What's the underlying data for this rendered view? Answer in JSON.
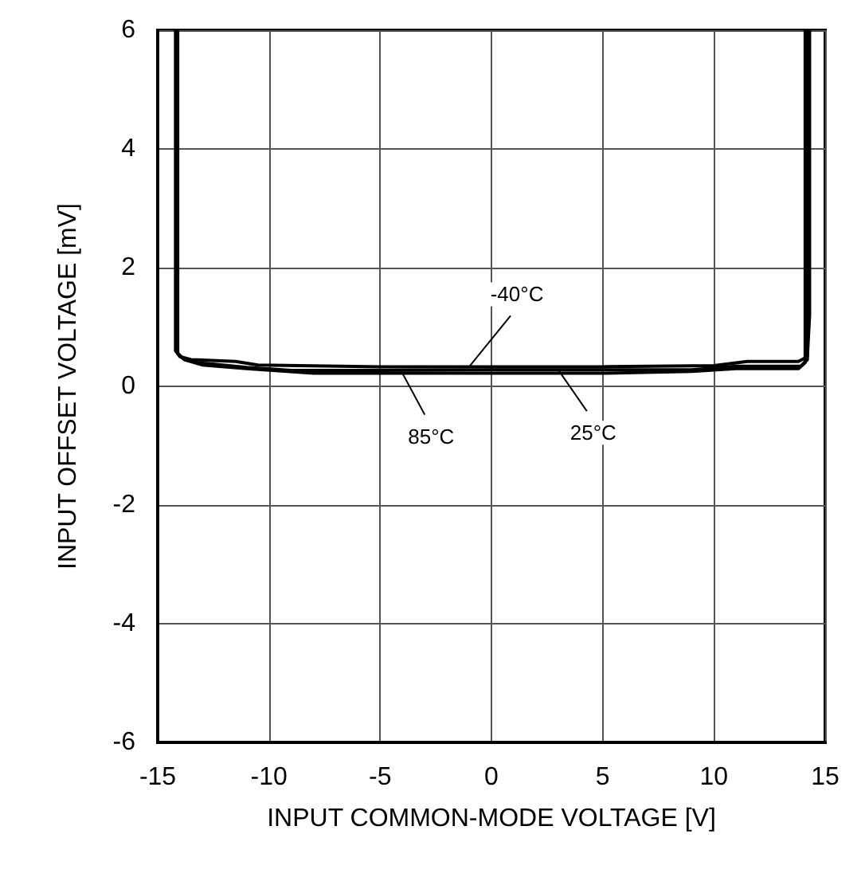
{
  "chart_data": {
    "type": "line",
    "xlabel": "INPUT COMMON-MODE VOLTAGE [V]",
    "ylabel": "INPUT OFFSET VOLTAGE [mV]",
    "xlim": [
      -15,
      15
    ],
    "xticks": [
      -15,
      -10,
      -5,
      0,
      5,
      10,
      15
    ],
    "ylim": [
      -6,
      6
    ],
    "yticks": [
      -6,
      -4,
      -2,
      0,
      2,
      4,
      6
    ],
    "grid": true,
    "marker": "none",
    "line_style": "solid",
    "series": [
      {
        "color": "#000000",
        "x": [
          -14.2,
          -14.2,
          -14.0,
          -13.5,
          -11.5,
          -10.5,
          -5,
          0,
          5,
          10,
          11.5,
          13.8,
          14.2,
          14.3,
          14.3
        ],
        "values": [
          6,
          0.6,
          0.5,
          0.45,
          0.42,
          0.36,
          0.33,
          0.33,
          0.33,
          0.35,
          0.42,
          0.42,
          0.5,
          1.2,
          6
        ]
      },
      {
        "color": "#000000",
        "x": [
          -14.1,
          -14.1,
          -13.8,
          -13,
          -11,
          -8,
          -5,
          0,
          5,
          9,
          11,
          13.8,
          14.1,
          14.1
        ],
        "values": [
          6,
          0.55,
          0.45,
          0.36,
          0.3,
          0.22,
          0.22,
          0.22,
          0.22,
          0.25,
          0.3,
          0.3,
          0.4,
          6
        ]
      },
      {
        "color": "#000000",
        "x": [
          -14.15,
          -14.15,
          -13.9,
          -13.2,
          -11,
          -9,
          -5,
          0,
          3,
          9,
          11,
          13.9,
          14.2,
          14.2
        ],
        "values": [
          6,
          0.58,
          0.48,
          0.4,
          0.32,
          0.27,
          0.27,
          0.28,
          0.28,
          0.28,
          0.34,
          0.34,
          0.45,
          6
        ]
      }
    ],
    "annotations": [
      {
        "text": "-40°C",
        "x": -1,
        "y": 0.33
      },
      {
        "text": "85°C",
        "x": -4,
        "y": 0.22
      },
      {
        "text": "25°C",
        "x": 3,
        "y": 0.28
      }
    ]
  }
}
